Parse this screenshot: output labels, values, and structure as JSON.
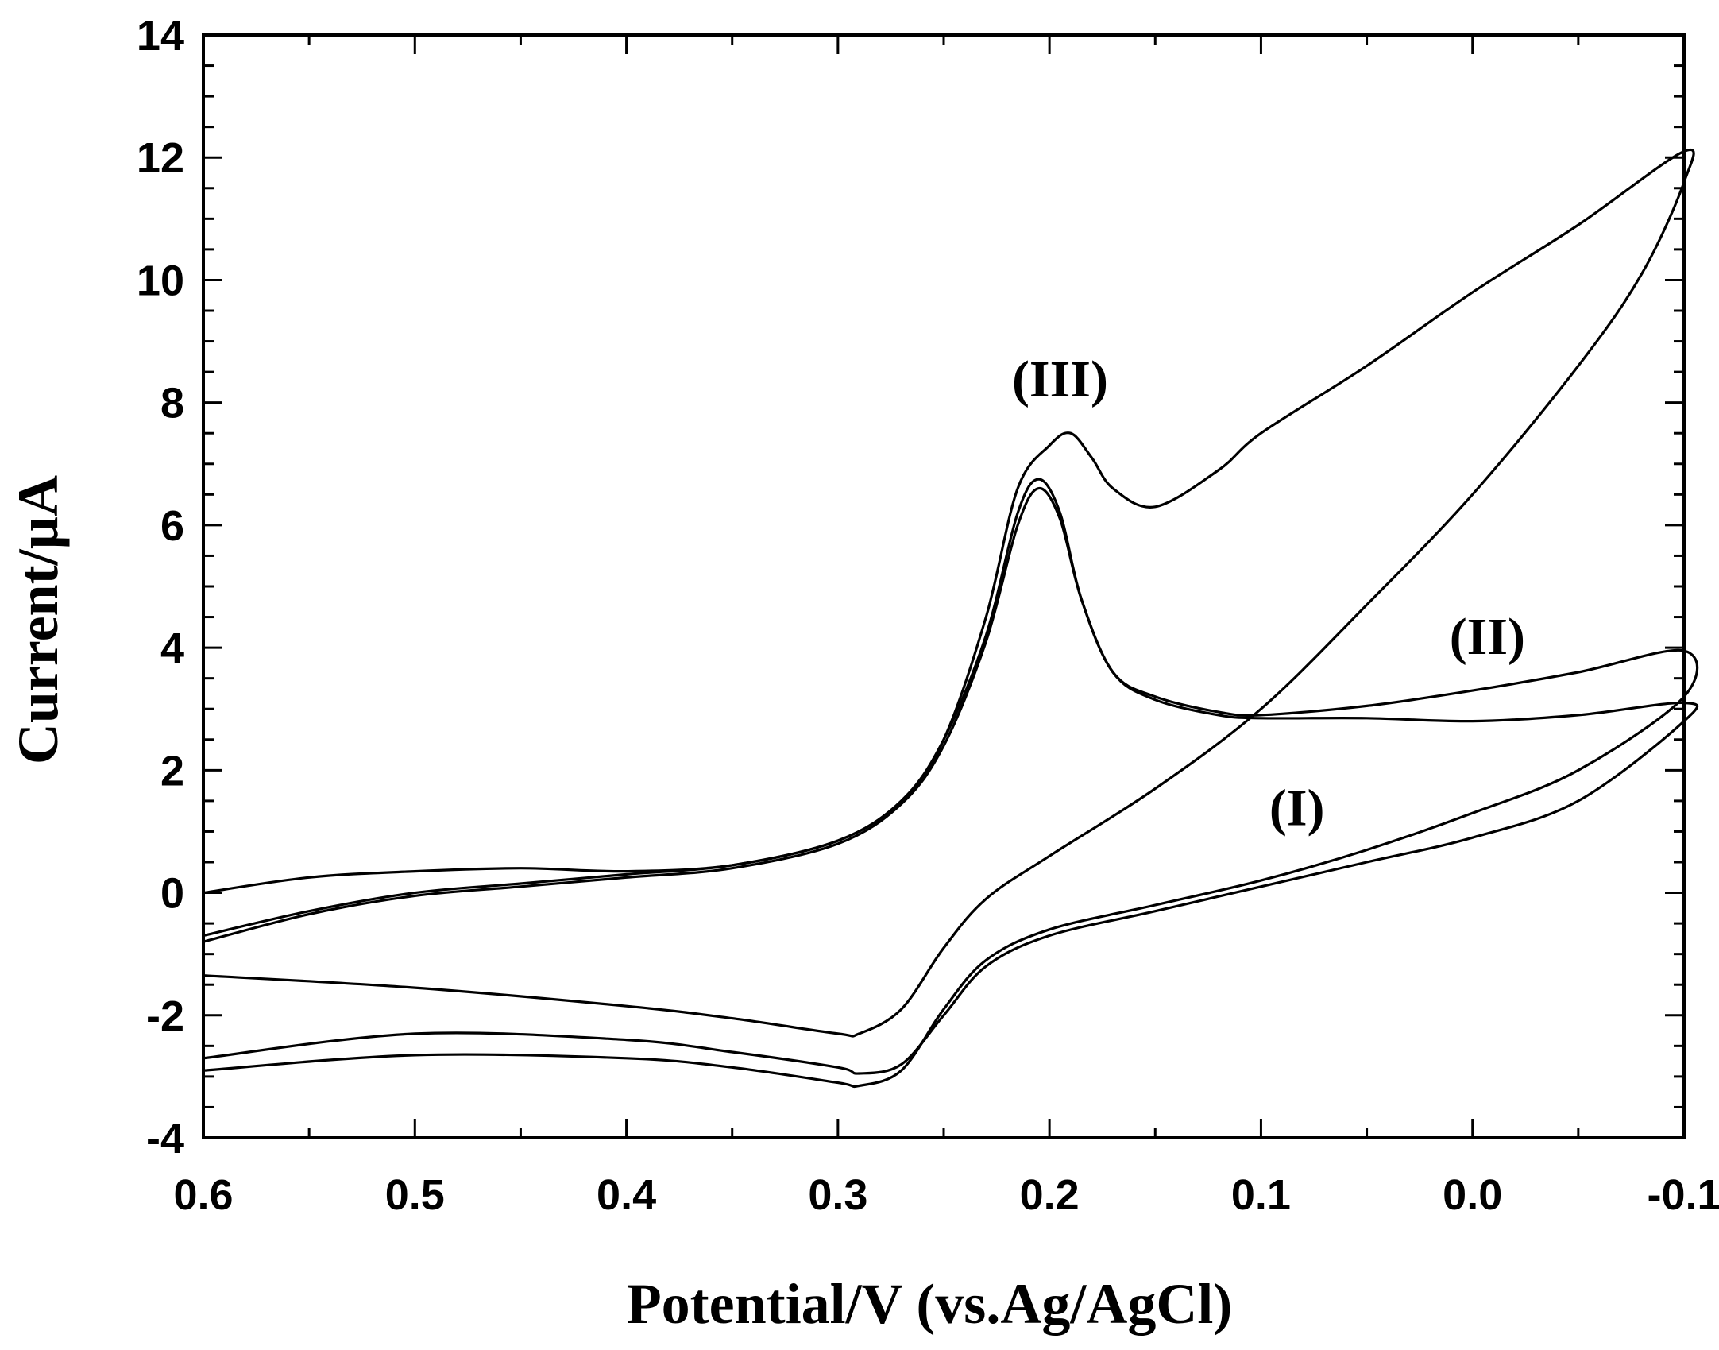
{
  "chart_data": {
    "type": "line",
    "title": "",
    "xlabel": "Potential/V (vs.Ag/AgCl)",
    "ylabel": "Current/µA",
    "xlim": [
      0.6,
      -0.1
    ],
    "ylim": [
      -4,
      14
    ],
    "x_ticks": [
      0.6,
      0.5,
      0.4,
      0.3,
      0.2,
      0.1,
      0.0,
      -0.1
    ],
    "x_tick_labels": [
      "0.6",
      "0.5",
      "0.4",
      "0.3",
      "0.2",
      "0.1",
      "0.0",
      "-0.1"
    ],
    "y_ticks": [
      -4,
      -2,
      0,
      2,
      4,
      6,
      8,
      10,
      12,
      14
    ],
    "y_tick_labels": [
      "-4",
      "-2",
      "0",
      "2",
      "4",
      "6",
      "8",
      "10",
      "12",
      "14"
    ],
    "grid": false,
    "series": [
      {
        "name": "(I)",
        "x": [
          0.6,
          0.55,
          0.5,
          0.45,
          0.4,
          0.35,
          0.3,
          0.27,
          0.25,
          0.23,
          0.215,
          0.205,
          0.195,
          0.185,
          0.17,
          0.15,
          0.12,
          0.1,
          0.05,
          0.0,
          -0.05,
          -0.1,
          -0.1,
          -0.05,
          0.0,
          0.05,
          0.1,
          0.15,
          0.2,
          0.23,
          0.25,
          0.27,
          0.29,
          0.3,
          0.35,
          0.4,
          0.5,
          0.6
        ],
        "y": [
          -0.7,
          -0.3,
          0.0,
          0.15,
          0.3,
          0.45,
          0.85,
          1.5,
          2.5,
          4.2,
          6.2,
          6.75,
          6.2,
          4.8,
          3.6,
          3.15,
          2.9,
          2.85,
          2.85,
          2.8,
          2.9,
          3.1,
          2.8,
          1.5,
          0.9,
          0.5,
          0.1,
          -0.3,
          -0.7,
          -1.2,
          -2.0,
          -2.8,
          -2.95,
          -2.85,
          -2.6,
          -2.4,
          -2.3,
          -2.7
        ]
      },
      {
        "name": "(II)",
        "x": [
          0.6,
          0.55,
          0.5,
          0.45,
          0.4,
          0.35,
          0.3,
          0.27,
          0.25,
          0.23,
          0.215,
          0.205,
          0.195,
          0.185,
          0.17,
          0.15,
          0.12,
          0.1,
          0.05,
          0.0,
          -0.05,
          -0.1,
          -0.1,
          -0.05,
          0.0,
          0.05,
          0.1,
          0.15,
          0.2,
          0.23,
          0.25,
          0.27,
          0.29,
          0.3,
          0.35,
          0.4,
          0.5,
          0.6
        ],
        "y": [
          -0.8,
          -0.35,
          -0.05,
          0.1,
          0.25,
          0.4,
          0.8,
          1.45,
          2.4,
          4.1,
          6.0,
          6.6,
          6.1,
          4.8,
          3.6,
          3.2,
          2.95,
          2.9,
          3.05,
          3.3,
          3.6,
          3.95,
          3.2,
          2.0,
          1.3,
          0.7,
          0.2,
          -0.2,
          -0.6,
          -1.1,
          -1.9,
          -2.9,
          -3.15,
          -3.1,
          -2.85,
          -2.7,
          -2.65,
          -2.9
        ]
      },
      {
        "name": "(III)",
        "x": [
          0.6,
          0.55,
          0.5,
          0.45,
          0.4,
          0.35,
          0.3,
          0.27,
          0.25,
          0.23,
          0.215,
          0.2,
          0.19,
          0.18,
          0.17,
          0.15,
          0.12,
          0.1,
          0.05,
          0.0,
          -0.05,
          -0.1,
          -0.1,
          -0.08,
          -0.05,
          0.0,
          0.05,
          0.1,
          0.15,
          0.2,
          0.23,
          0.25,
          0.27,
          0.29,
          0.3,
          0.35,
          0.4,
          0.5,
          0.6
        ],
        "y": [
          0.0,
          0.25,
          0.35,
          0.4,
          0.35,
          0.45,
          0.85,
          1.5,
          2.5,
          4.5,
          6.6,
          7.3,
          7.5,
          7.1,
          6.6,
          6.3,
          6.9,
          7.5,
          8.6,
          9.8,
          10.9,
          12.1,
          11.6,
          10.1,
          8.6,
          6.5,
          4.7,
          3.0,
          1.7,
          0.6,
          -0.1,
          -0.9,
          -1.9,
          -2.3,
          -2.3,
          -2.05,
          -1.85,
          -1.55,
          -1.35
        ]
      }
    ],
    "annotations": [
      {
        "text": "(III)",
        "x": 0.195,
        "y": 8.1
      },
      {
        "text": "(II)",
        "x": -0.007,
        "y": 3.9
      },
      {
        "text": "(I)",
        "x": 0.083,
        "y": 1.1
      }
    ]
  }
}
